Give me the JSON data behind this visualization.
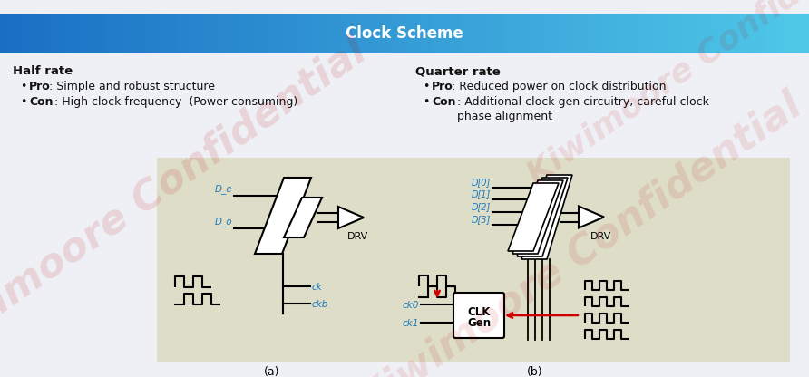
{
  "title": "Clock Scheme",
  "title_color": "#ffffff",
  "header_gradient_left": "#1a6fc4",
  "header_gradient_right": "#4fc8e8",
  "bg_color": "#eef0f5",
  "diagram_bg": "#ddddc8",
  "half_rate_title": "Half rate",
  "quarter_rate_title": "Quarter rate",
  "label_a": "(a)",
  "label_b": "(b)",
  "drv_label": "DRV",
  "clk_gen_line1": "CLK",
  "clk_gen_line2": "Gen",
  "signal_color": "#1a7abf",
  "arrow_color": "#cc0000",
  "text_color": "#111111",
  "watermark_color": "#bb0000",
  "watermark_alpha": 0.1
}
